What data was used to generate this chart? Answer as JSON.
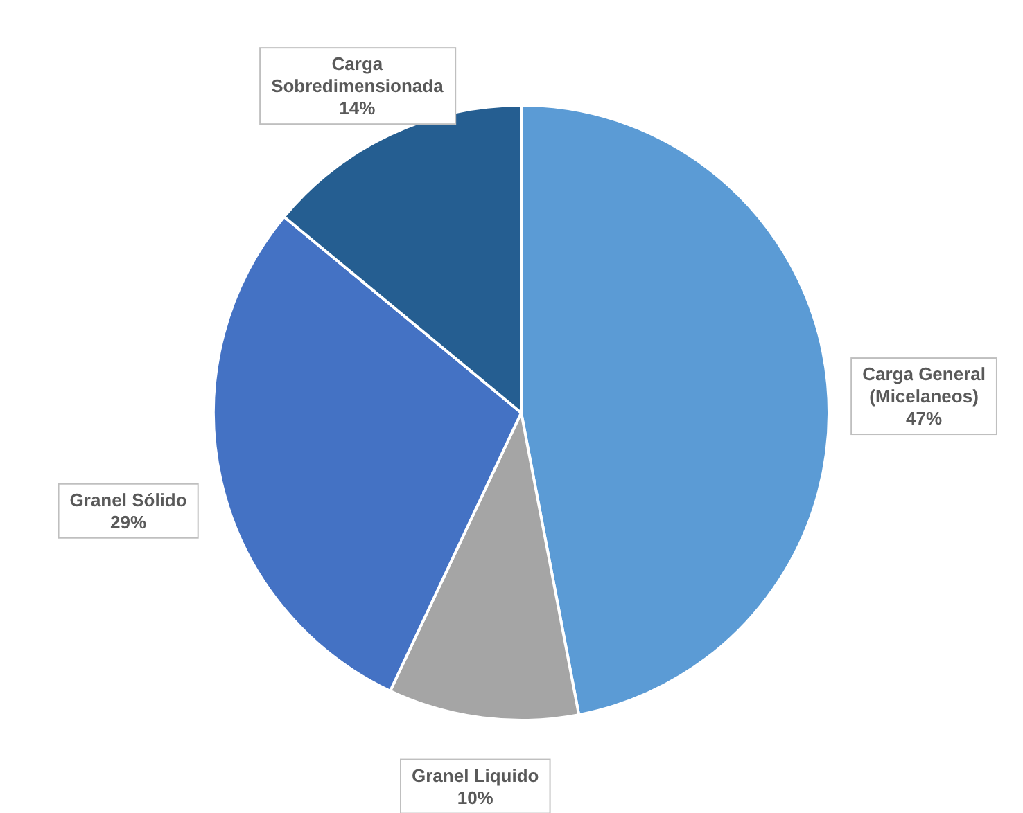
{
  "chart_data": {
    "type": "pie",
    "categories": [
      "Carga General (Micelaneos)",
      "Granel Liquido",
      "Granel Sólido",
      "Carga Sobredimensionada"
    ],
    "values": [
      47,
      10,
      29,
      14
    ],
    "colors": [
      "#5b9bd5",
      "#a5a5a5",
      "#4472c4",
      "#255e91"
    ],
    "value_labels": [
      "47%",
      "10%",
      "29%",
      "14%"
    ]
  }
}
